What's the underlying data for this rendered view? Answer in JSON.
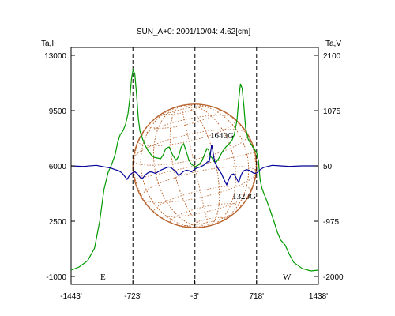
{
  "chart_data": {
    "type": "line",
    "title": "SUN_A+0: 2001/10/04: 4.62[cm]",
    "left_axis_label": "Ta,I",
    "right_axis_label": "Ta,V",
    "x_ticks": [
      "-1443'",
      "-723'",
      "-3'",
      "718'",
      "1438'"
    ],
    "x_tick_values": [
      -1443,
      -723,
      -3,
      718,
      1438
    ],
    "x_range": [
      -1443,
      1438
    ],
    "y_left_ticks": [
      "13000",
      "9500",
      "6000",
      "2500",
      "-1000"
    ],
    "y_left_range": [
      -1000,
      13000
    ],
    "y_right_ticks": [
      "2100",
      "1075",
      "50",
      "-975",
      "-2000"
    ],
    "y_right_range": [
      -2000,
      2100
    ],
    "limb_labels": {
      "east": "E",
      "west": "W"
    },
    "limb_markers": [
      -723,
      0,
      718
    ],
    "annotations": [
      {
        "text": "1640G",
        "x": 260,
        "y": 6400
      },
      {
        "text": "1320G",
        "x": 450,
        "y": 3600
      }
    ],
    "solar_disk": {
      "center_x": -3,
      "center_y": 6000,
      "radius_arcmin": 720
    },
    "series": [
      {
        "axis": "left",
        "color": "#009900",
        "points": [
          [
            -1443,
            -600
          ],
          [
            -1350,
            -400
          ],
          [
            -1250,
            0
          ],
          [
            -1170,
            800
          ],
          [
            -1110,
            2500
          ],
          [
            -1060,
            4500
          ],
          [
            -1010,
            5600
          ],
          [
            -970,
            6100
          ],
          [
            -930,
            6700
          ],
          [
            -900,
            7500
          ],
          [
            -870,
            8000
          ],
          [
            -840,
            8200
          ],
          [
            -810,
            8600
          ],
          [
            -780,
            9300
          ],
          [
            -760,
            10200
          ],
          [
            -740,
            11500
          ],
          [
            -720,
            12100
          ],
          [
            -700,
            11800
          ],
          [
            -680,
            10500
          ],
          [
            -660,
            9000
          ],
          [
            -640,
            8200
          ],
          [
            -610,
            7700
          ],
          [
            -580,
            7300
          ],
          [
            -550,
            7000
          ],
          [
            -510,
            6700
          ],
          [
            -480,
            6550
          ],
          [
            -440,
            6500
          ],
          [
            -400,
            6450
          ],
          [
            -370,
            6700
          ],
          [
            -340,
            7100
          ],
          [
            -300,
            7200
          ],
          [
            -260,
            6700
          ],
          [
            -220,
            6350
          ],
          [
            -190,
            6600
          ],
          [
            -160,
            7200
          ],
          [
            -130,
            7400
          ],
          [
            -100,
            6900
          ],
          [
            -70,
            6350
          ],
          [
            -40,
            6100
          ],
          [
            0,
            5950
          ],
          [
            40,
            6050
          ],
          [
            80,
            6300
          ],
          [
            110,
            6700
          ],
          [
            140,
            7100
          ],
          [
            160,
            7000
          ],
          [
            180,
            6600
          ],
          [
            200,
            6500
          ],
          [
            220,
            6300
          ],
          [
            250,
            6250
          ],
          [
            280,
            6500
          ],
          [
            320,
            6900
          ],
          [
            360,
            7200
          ],
          [
            400,
            7400
          ],
          [
            430,
            7600
          ],
          [
            460,
            8000
          ],
          [
            490,
            8900
          ],
          [
            510,
            10200
          ],
          [
            530,
            11200
          ],
          [
            550,
            10900
          ],
          [
            570,
            9800
          ],
          [
            590,
            8400
          ],
          [
            620,
            7700
          ],
          [
            650,
            7400
          ],
          [
            690,
            7100
          ],
          [
            720,
            6800
          ],
          [
            740,
            6300
          ],
          [
            760,
            5100
          ],
          [
            780,
            4600
          ],
          [
            800,
            4300
          ],
          [
            830,
            3900
          ],
          [
            870,
            3300
          ],
          [
            920,
            2500
          ],
          [
            960,
            1800
          ],
          [
            1000,
            1300
          ],
          [
            1050,
            1000
          ],
          [
            1100,
            400
          ],
          [
            1150,
            -100
          ],
          [
            1250,
            -500
          ],
          [
            1350,
            -650
          ],
          [
            1438,
            -600
          ]
        ]
      },
      {
        "axis": "right",
        "color": "#000099",
        "points": [
          [
            -1443,
            50
          ],
          [
            -1300,
            40
          ],
          [
            -1150,
            60
          ],
          [
            -1050,
            30
          ],
          [
            -980,
            10
          ],
          [
            -930,
            -20
          ],
          [
            -890,
            -40
          ],
          [
            -850,
            -80
          ],
          [
            -820,
            -140
          ],
          [
            -790,
            -200
          ],
          [
            -760,
            -120
          ],
          [
            -730,
            -80
          ],
          [
            -700,
            -60
          ],
          [
            -670,
            -100
          ],
          [
            -640,
            -160
          ],
          [
            -610,
            -180
          ],
          [
            -580,
            -120
          ],
          [
            -550,
            -80
          ],
          [
            -520,
            -60
          ],
          [
            -490,
            -70
          ],
          [
            -460,
            -90
          ],
          [
            -430,
            -60
          ],
          [
            -400,
            -30
          ],
          [
            -370,
            -10
          ],
          [
            -340,
            10
          ],
          [
            -310,
            30
          ],
          [
            -280,
            20
          ],
          [
            -250,
            -20
          ],
          [
            -220,
            -60
          ],
          [
            -190,
            -130
          ],
          [
            -160,
            -90
          ],
          [
            -130,
            -50
          ],
          [
            -100,
            -30
          ],
          [
            -70,
            -40
          ],
          [
            -40,
            -60
          ],
          [
            -10,
            -20
          ],
          [
            20,
            10
          ],
          [
            60,
            30
          ],
          [
            100,
            60
          ],
          [
            130,
            100
          ],
          [
            150,
            130
          ],
          [
            165,
            120
          ],
          [
            175,
            200
          ],
          [
            185,
            340
          ],
          [
            195,
            440
          ],
          [
            205,
            380
          ],
          [
            215,
            250
          ],
          [
            230,
            120
          ],
          [
            250,
            60
          ],
          [
            270,
            0
          ],
          [
            290,
            -50
          ],
          [
            310,
            -100
          ],
          [
            330,
            -170
          ],
          [
            350,
            -240
          ],
          [
            370,
            -300
          ],
          [
            390,
            -220
          ],
          [
            410,
            -150
          ],
          [
            430,
            -110
          ],
          [
            450,
            -100
          ],
          [
            470,
            -140
          ],
          [
            490,
            -200
          ],
          [
            510,
            -260
          ],
          [
            530,
            -150
          ],
          [
            550,
            -80
          ],
          [
            570,
            -40
          ],
          [
            600,
            -20
          ],
          [
            630,
            -30
          ],
          [
            660,
            -60
          ],
          [
            690,
            -90
          ],
          [
            720,
            -80
          ],
          [
            760,
            -20
          ],
          [
            800,
            20
          ],
          [
            850,
            40
          ],
          [
            900,
            60
          ],
          [
            1000,
            50
          ],
          [
            1100,
            40
          ],
          [
            1250,
            50
          ],
          [
            1438,
            50
          ]
        ]
      }
    ]
  }
}
